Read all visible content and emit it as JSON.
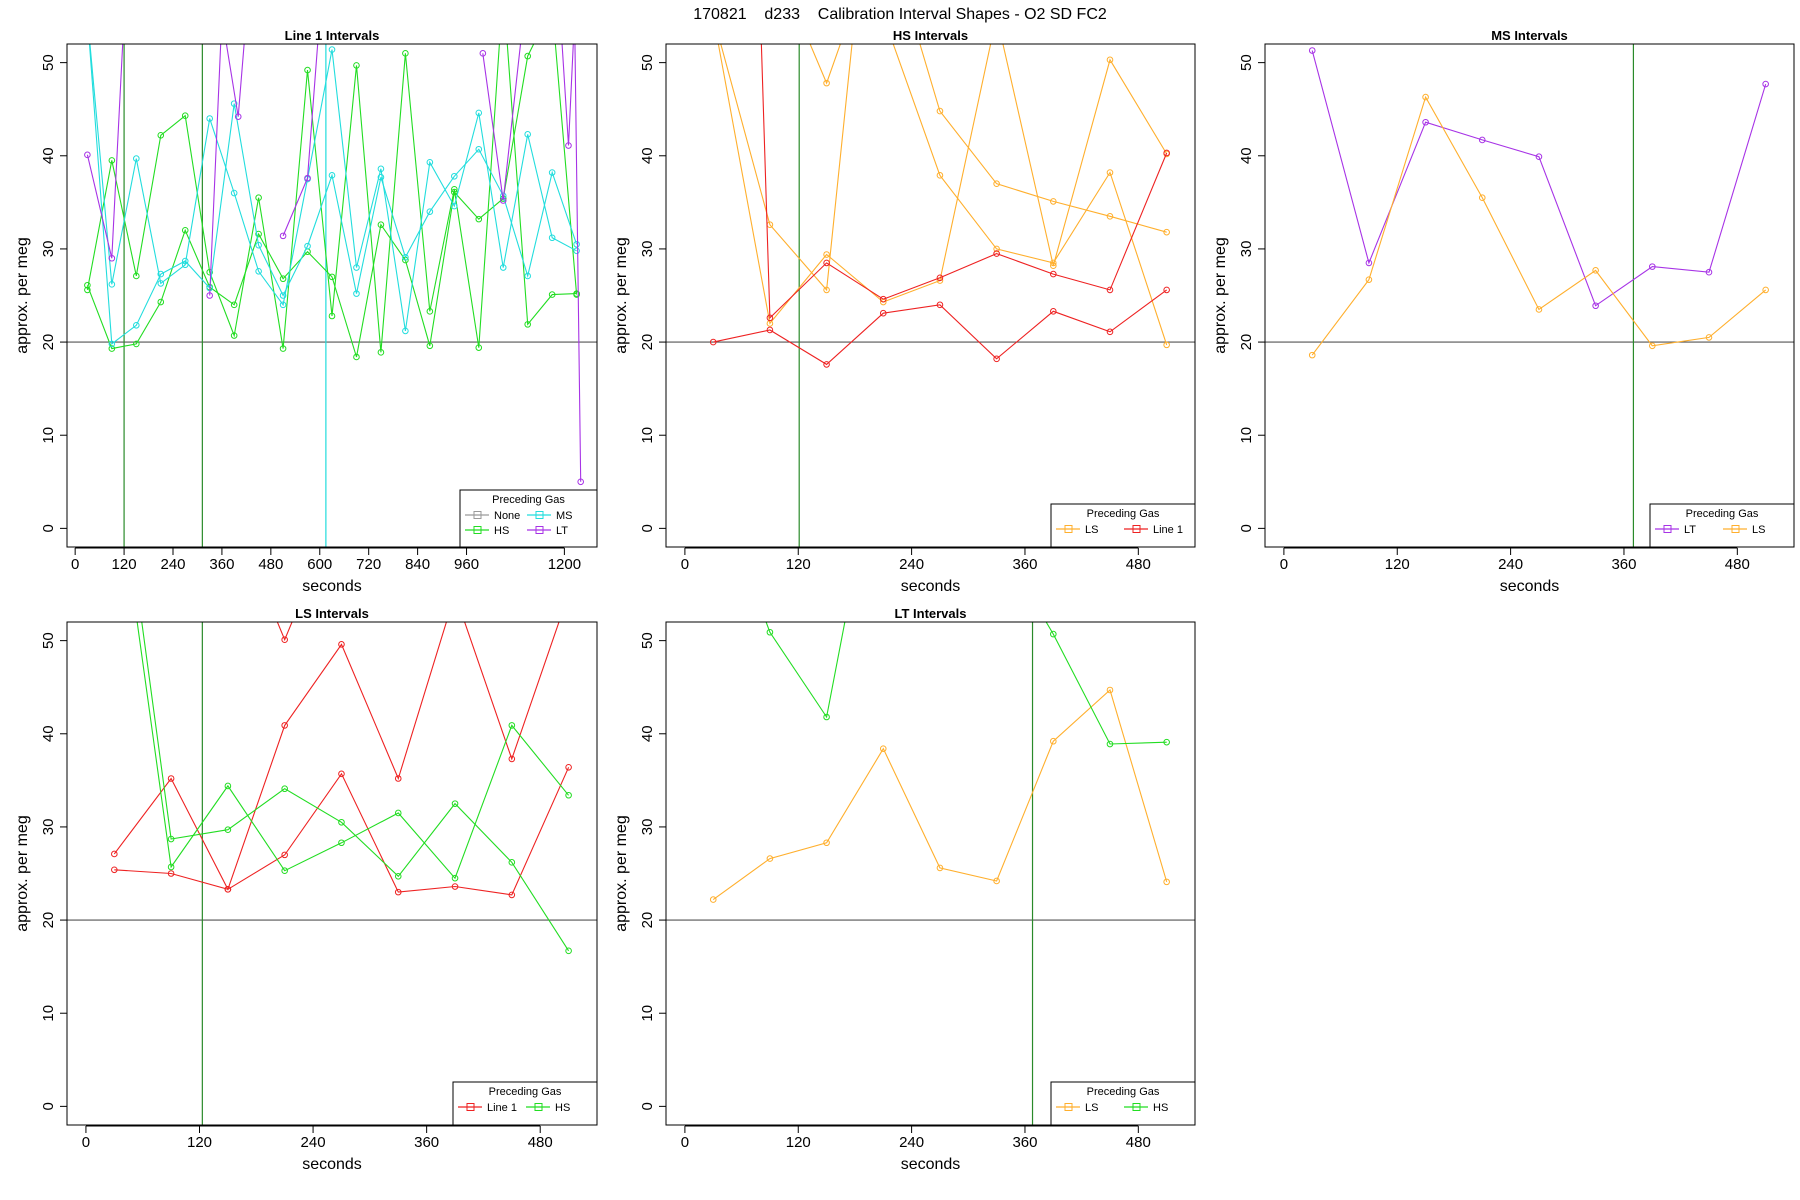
{
  "figure_title": "170821    d233    Calibration Interval Shapes - O2 SD FC2",
  "colors": {
    "None": "#9a9a9a",
    "HS": "#22dd22",
    "MS": "#22dddd",
    "LT": "#a733e6",
    "LS": "#ffaf2d",
    "Line 1": "#ee2222",
    "ref_h": "#555555",
    "ref_v": "#2a8a2a"
  },
  "chart_data": [
    {
      "type": "line",
      "title": "Line 1 Intervals",
      "xlabel": "seconds",
      "ylabel": "approx. per meg",
      "xlim": [
        -20,
        1280
      ],
      "ylim": [
        -2,
        52
      ],
      "xticks": [
        0,
        120,
        240,
        360,
        480,
        600,
        720,
        840,
        960,
        1200
      ],
      "yticks": [
        0,
        10,
        20,
        30,
        40,
        50
      ],
      "hline": 20,
      "vlines": [
        {
          "x": 120,
          "color": "HS"
        },
        {
          "x": 312,
          "color": "HS"
        },
        {
          "x": 615,
          "color": "MS"
        }
      ],
      "legend_title": "Preceding Gas",
      "legend": [
        "None",
        "MS",
        "HS",
        "LT"
      ],
      "series": [
        {
          "name": "HS",
          "x": [
            30,
            90,
            150,
            210,
            270,
            330,
            390,
            450,
            510,
            570,
            630,
            690,
            750,
            810,
            870,
            930,
            990,
            1050,
            1110,
            1170,
            1230
          ],
          "y": [
            25.6,
            39.5,
            27.1,
            42.2,
            44.3,
            27.5,
            20.7,
            35.5,
            19.3,
            49.2,
            22.8,
            49.7,
            18.9,
            51,
            23.3,
            36.4,
            19.4,
            58,
            21.9,
            25.1,
            25.2
          ]
        },
        {
          "name": "HS",
          "x": [
            30,
            90,
            150,
            210,
            270,
            330,
            390,
            450,
            510,
            570,
            630,
            690,
            750,
            810,
            870,
            930,
            990,
            1050,
            1110,
            1170,
            1230
          ],
          "y": [
            26.1,
            19.3,
            19.8,
            24.3,
            32,
            25.9,
            24,
            31.6,
            26.8,
            29.7,
            27,
            18.4,
            32.6,
            28.8,
            19.6,
            36.1,
            33.2,
            35.4,
            50.7,
            56,
            25.1
          ]
        },
        {
          "name": "MS",
          "x": [
            30,
            90,
            150,
            210,
            270,
            330,
            390,
            450,
            510,
            570,
            630,
            690,
            750,
            810,
            870,
            930,
            990,
            1050,
            1110,
            1170,
            1230
          ],
          "y": [
            55,
            26.2,
            39.7,
            26.3,
            28.3,
            44,
            36,
            27.6,
            24,
            37.5,
            51.4,
            28,
            38.6,
            21.2,
            39.3,
            34.6,
            44.6,
            28,
            42.3,
            31.2,
            29.8
          ]
        },
        {
          "name": "MS",
          "x": [
            30,
            90,
            150,
            210,
            270,
            330,
            390,
            450,
            510,
            570,
            630,
            690,
            750,
            810,
            870,
            930,
            990,
            1050,
            1110,
            1170,
            1230
          ],
          "y": [
            55,
            19.8,
            21.8,
            27.3,
            28.7,
            25.8,
            45.6,
            30.4,
            25,
            30.3,
            37.9,
            25.2,
            37.7,
            29.1,
            34,
            37.8,
            40.7,
            35.7,
            27.1,
            38.2,
            30.5
          ]
        },
        {
          "name": "LT",
          "x": [
            30,
            90,
            120
          ],
          "y": [
            40.1,
            29,
            55
          ]
        },
        {
          "name": "LT",
          "x": [
            330,
            360,
            400,
            420
          ],
          "y": [
            25,
            55,
            44.2,
            55
          ]
        },
        {
          "name": "LT",
          "x": [
            510,
            570,
            600
          ],
          "y": [
            31.4,
            37.6,
            55
          ]
        },
        {
          "name": "LT",
          "x": [
            1000,
            1050,
            1100
          ],
          "y": [
            51,
            35.2,
            55
          ]
        },
        {
          "name": "LT",
          "x": [
            1190,
            1210,
            1225,
            1240
          ],
          "y": [
            55,
            41.1,
            55,
            5
          ]
        }
      ]
    },
    {
      "type": "line",
      "title": "HS Intervals",
      "xlabel": "seconds",
      "ylabel": "approx. per meg",
      "xlim": [
        -20,
        540
      ],
      "ylim": [
        -2,
        52
      ],
      "xticks": [
        0,
        120,
        240,
        360,
        480
      ],
      "yticks": [
        0,
        10,
        20,
        30,
        40,
        50
      ],
      "hline": 20,
      "vlines": [
        {
          "x": 121,
          "color": "HS"
        }
      ],
      "legend_title": "Preceding Gas",
      "legend": [
        "LS",
        "Line 1"
      ],
      "series": [
        {
          "name": "LS",
          "x": [
            30,
            90,
            150,
            180
          ],
          "y": [
            55,
            32.6,
            25.6,
            55
          ]
        },
        {
          "name": "LS",
          "x": [
            120,
            150,
            175
          ],
          "y": [
            55,
            47.8,
            55
          ]
        },
        {
          "name": "LS",
          "x": [
            30,
            90,
            150,
            210,
            270,
            330,
            390,
            450,
            510
          ],
          "y": [
            55,
            22,
            29.4,
            24.3,
            26.6,
            55,
            28.2,
            50.3,
            40.2
          ]
        },
        {
          "name": "LS",
          "x": [
            240,
            270,
            330,
            390,
            450,
            510
          ],
          "y": [
            55,
            44.8,
            37,
            35.1,
            33.5,
            31.8
          ]
        },
        {
          "name": "LS",
          "x": [
            210,
            270,
            330,
            390,
            450,
            510
          ],
          "y": [
            55,
            37.9,
            30,
            28.5,
            38.2,
            19.7
          ]
        },
        {
          "name": "Line 1",
          "x": [
            30,
            90,
            150,
            210,
            270,
            330,
            390,
            450,
            510
          ],
          "y": [
            20,
            21.3,
            17.6,
            23.1,
            24,
            18.2,
            23.3,
            21.1,
            25.6
          ]
        },
        {
          "name": "Line 1",
          "x": [
            80,
            90,
            150,
            210,
            270,
            330,
            390,
            450,
            510
          ],
          "y": [
            55,
            22.6,
            28.5,
            24.6,
            26.9,
            29.5,
            27.3,
            25.6,
            40.3
          ]
        }
      ]
    },
    {
      "type": "line",
      "title": "MS Intervals",
      "xlabel": "seconds",
      "ylabel": "approx. per meg",
      "xlim": [
        -20,
        540
      ],
      "ylim": [
        -2,
        52
      ],
      "xticks": [
        0,
        120,
        240,
        360,
        480
      ],
      "yticks": [
        0,
        10,
        20,
        30,
        40,
        50
      ],
      "hline": 20,
      "vlines": [
        {
          "x": 370,
          "color": "HS"
        }
      ],
      "legend_title": "Preceding Gas",
      "legend": [
        "LT",
        "LS"
      ],
      "series": [
        {
          "name": "LT",
          "x": [
            30,
            90,
            150,
            210,
            270,
            330,
            390,
            450,
            510
          ],
          "y": [
            51.3,
            28.5,
            43.6,
            41.7,
            39.9,
            23.9,
            28.1,
            27.5,
            47.7
          ]
        },
        {
          "name": "LS",
          "x": [
            30,
            90,
            150,
            210,
            270,
            330,
            390,
            450,
            510
          ],
          "y": [
            18.6,
            26.7,
            46.3,
            35.5,
            23.5,
            27.7,
            19.6,
            20.5,
            25.6
          ]
        }
      ]
    },
    {
      "type": "line",
      "title": "LS Intervals",
      "xlabel": "seconds",
      "ylabel": "approx. per meg",
      "xlim": [
        -20,
        540
      ],
      "ylim": [
        -2,
        52
      ],
      "xticks": [
        0,
        120,
        240,
        360,
        480
      ],
      "yticks": [
        0,
        10,
        20,
        30,
        40,
        50
      ],
      "hline": 20,
      "vlines": [
        {
          "x": 123,
          "color": "HS"
        }
      ],
      "legend_title": "Preceding Gas",
      "legend": [
        "Line 1",
        "HS"
      ],
      "series": [
        {
          "name": "Line 1",
          "x": [
            30,
            90,
            150,
            210,
            270,
            330,
            390,
            450,
            510
          ],
          "y": [
            27.1,
            35.2,
            23.3,
            40.9,
            49.6,
            35.2,
            55,
            37.3,
            55
          ]
        },
        {
          "name": "Line 1",
          "x": [
            30,
            90,
            150,
            210,
            270,
            330,
            390,
            450,
            510
          ],
          "y": [
            25.4,
            25,
            23.3,
            27,
            35.7,
            23,
            23.6,
            22.7,
            36.4
          ]
        },
        {
          "name": "Line 1",
          "x": [
            190,
            210,
            230
          ],
          "y": [
            55,
            50.1,
            55
          ]
        },
        {
          "name": "HS",
          "x": [
            50,
            90,
            150,
            210,
            270,
            330,
            390,
            450,
            510
          ],
          "y": [
            55,
            25.7,
            34.4,
            25.3,
            28.3,
            31.5,
            24.5,
            40.9,
            33.4
          ]
        },
        {
          "name": "HS",
          "x": [
            55,
            90,
            150,
            210,
            270,
            330,
            390,
            450,
            510
          ],
          "y": [
            55,
            28.7,
            29.7,
            34.1,
            30.5,
            24.7,
            32.5,
            26.2,
            16.7
          ]
        }
      ]
    },
    {
      "type": "line",
      "title": "LT Intervals",
      "xlabel": "seconds",
      "ylabel": "approx. per meg",
      "xlim": [
        -20,
        540
      ],
      "ylim": [
        -2,
        52
      ],
      "xticks": [
        0,
        120,
        240,
        360,
        480
      ],
      "yticks": [
        0,
        10,
        20,
        30,
        40,
        50
      ],
      "hline": 20,
      "vlines": [
        {
          "x": 368,
          "color": "HS"
        }
      ],
      "legend_title": "Preceding Gas",
      "legend": [
        "LS",
        "HS"
      ],
      "series": [
        {
          "name": "LS",
          "x": [
            30,
            90,
            150,
            210,
            270,
            330,
            390,
            450,
            510
          ],
          "y": [
            22.2,
            26.6,
            28.3,
            38.4,
            25.6,
            24.2,
            39.2,
            44.7,
            24.1
          ]
        },
        {
          "name": "HS",
          "x": [
            75,
            90,
            150,
            175
          ],
          "y": [
            55,
            50.9,
            41.8,
            55
          ]
        },
        {
          "name": "HS",
          "x": [
            365,
            390,
            450,
            510
          ],
          "y": [
            55,
            50.7,
            38.9,
            39.1
          ]
        }
      ]
    }
  ]
}
